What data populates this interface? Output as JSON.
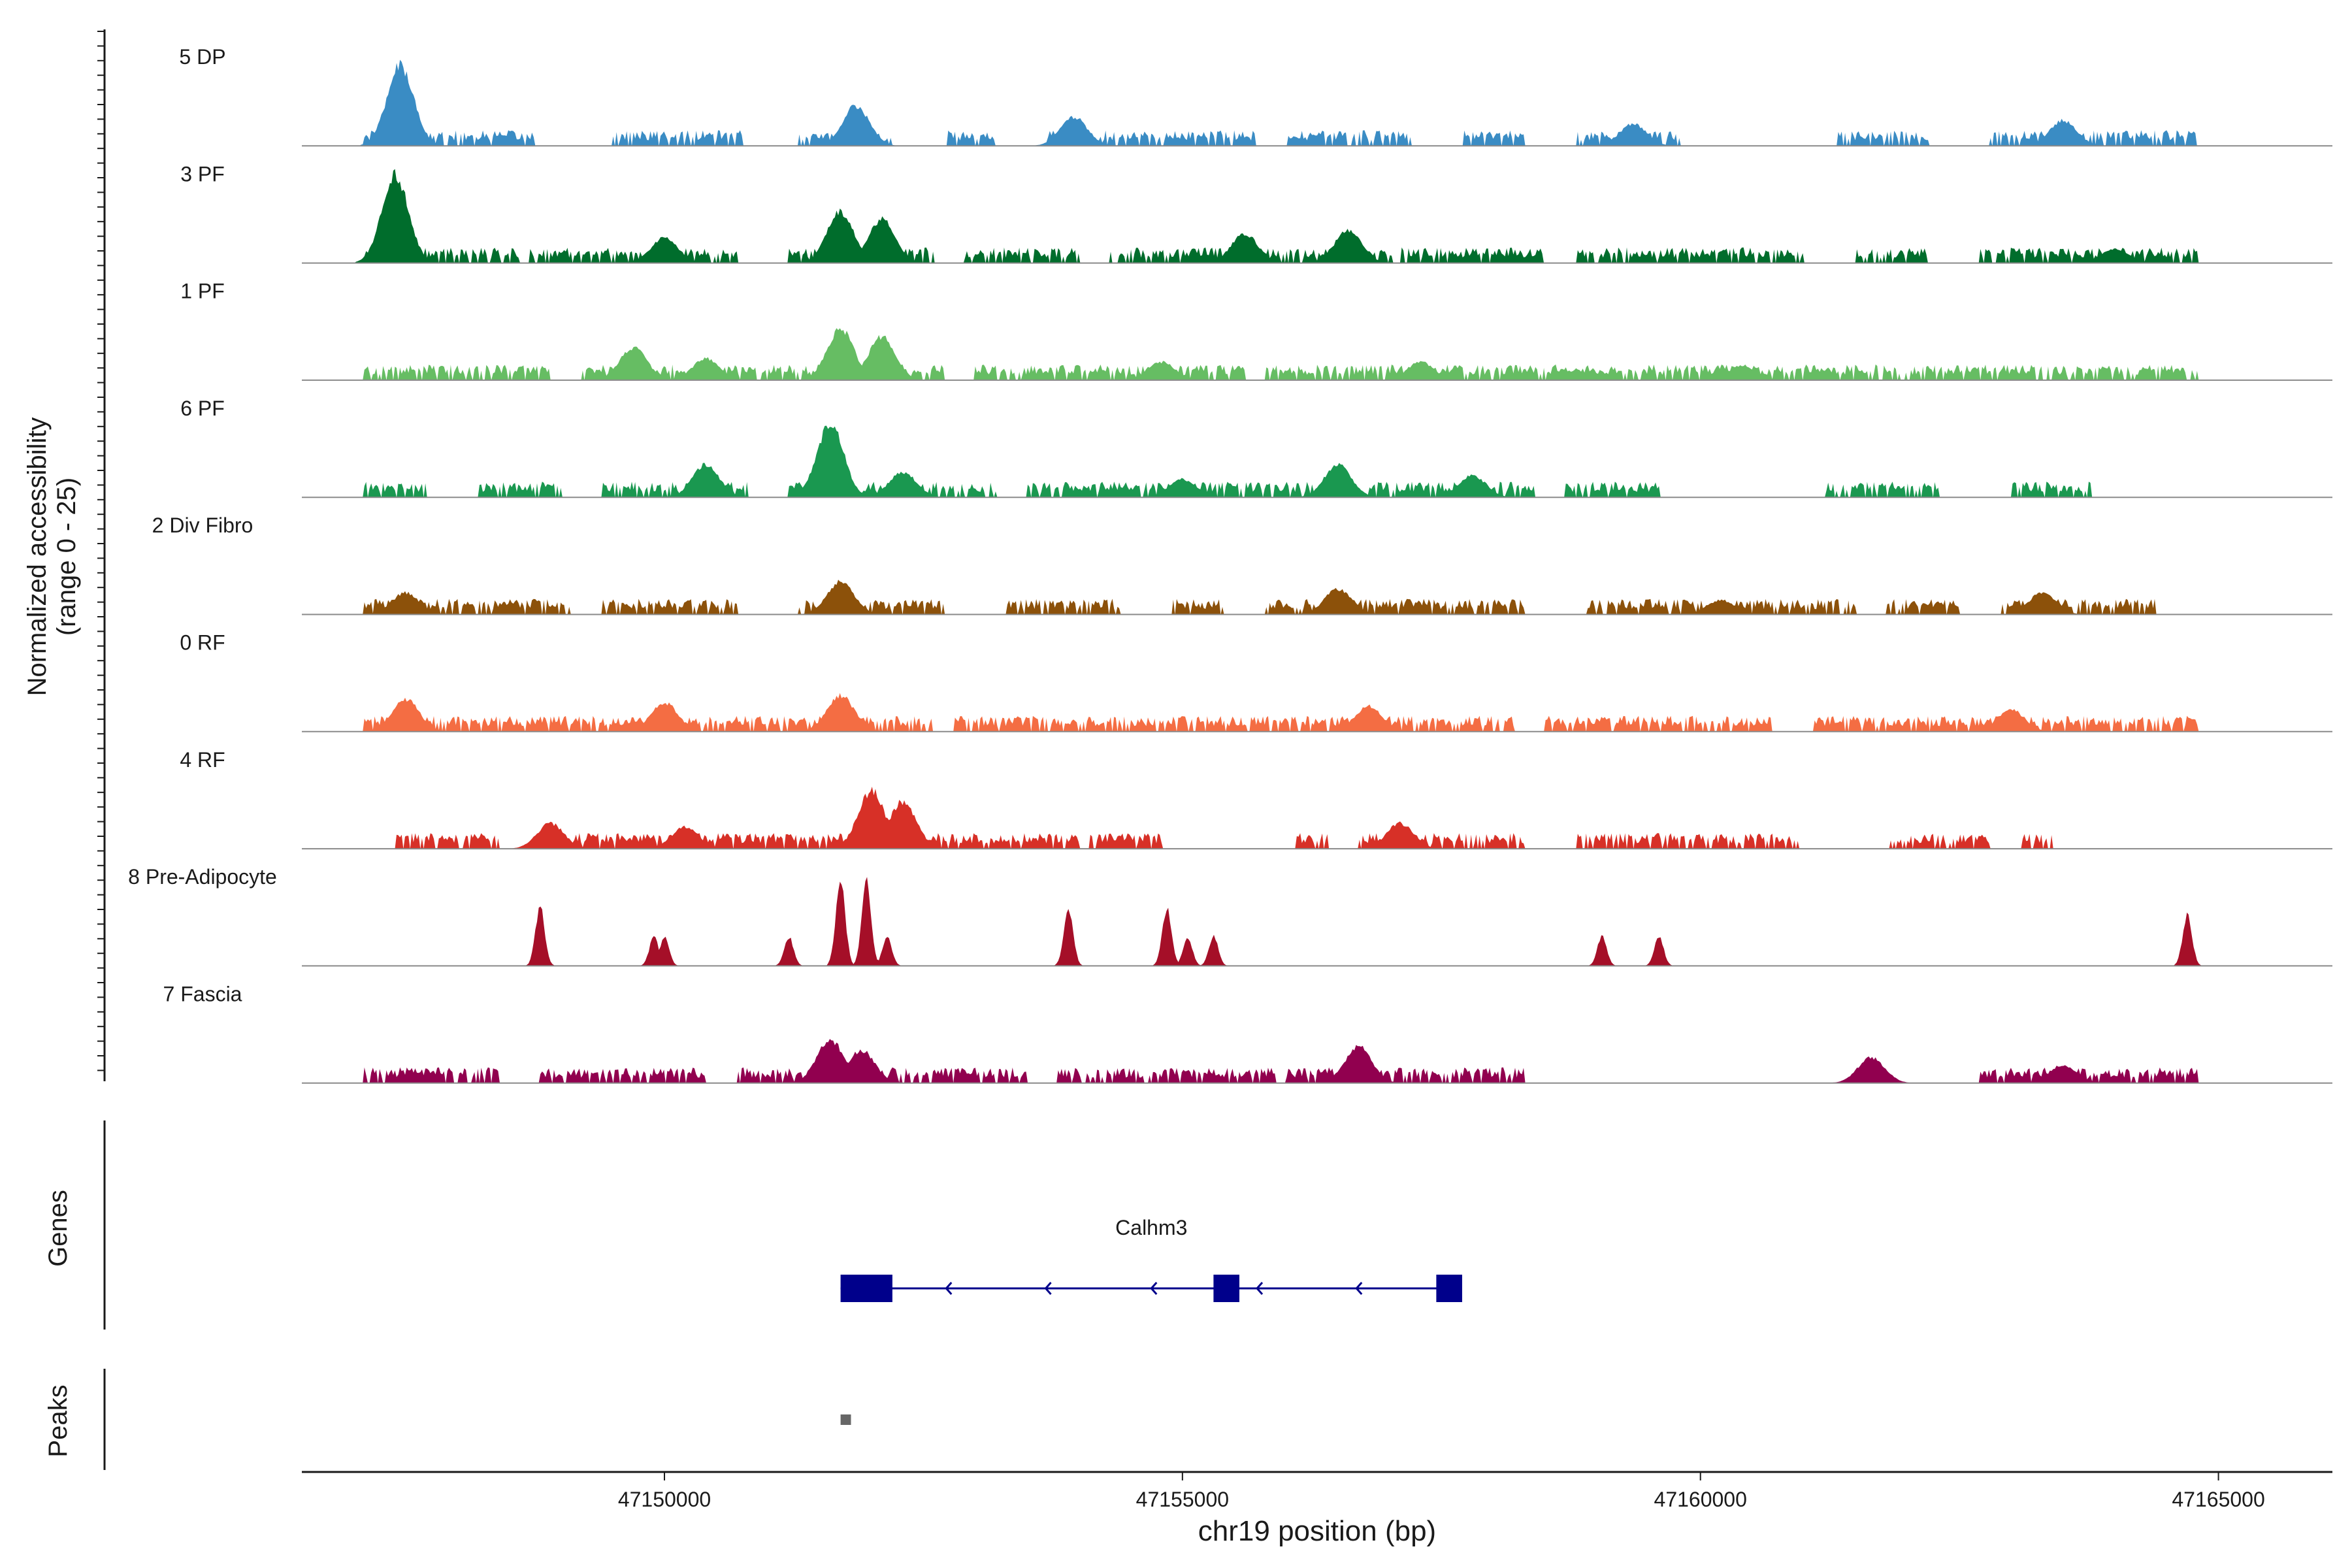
{
  "chart_data": {
    "type": "area",
    "title": "",
    "ylabel_line1": "Normalized accessibility",
    "ylabel_line2": "(range 0 - 25)",
    "xlabel": "chr19 position (bp)",
    "xlim": [
      47146500,
      47166100
    ],
    "ylim": [
      0,
      25
    ],
    "xticks": [
      47150000,
      47155000,
      47160000,
      47165000
    ],
    "xtick_labels": [
      "47150000",
      "47155000",
      "47160000",
      "47165000"
    ],
    "tracks": [
      {
        "name": "5 DP",
        "color": "#3a8cc4",
        "segments": [
          [
            47147100,
            47148750
          ],
          [
            47149500,
            47150750
          ],
          [
            47151300,
            47152200
          ],
          [
            47152700,
            47153200
          ],
          [
            47153700,
            47155700
          ],
          [
            47156000,
            47157200
          ],
          [
            47157700,
            47158300
          ],
          [
            47158800,
            47159800
          ],
          [
            47161300,
            47162200
          ],
          [
            47162800,
            47164800
          ]
        ],
        "peaks": [
          [
            47147450,
            22
          ],
          [
            47151850,
            11
          ],
          [
            47153950,
            8
          ],
          [
            47159350,
            6
          ],
          [
            47163500,
            7
          ]
        ]
      },
      {
        "name": "3 PF",
        "color": "#006d2c",
        "segments": [
          [
            47147100,
            47148600
          ],
          [
            47148700,
            47150700
          ],
          [
            47151200,
            47152600
          ],
          [
            47152900,
            47154000
          ],
          [
            47154300,
            47158500
          ],
          [
            47158800,
            47161000
          ],
          [
            47161500,
            47162200
          ],
          [
            47162700,
            47164800
          ]
        ],
        "peaks": [
          [
            47147400,
            24
          ],
          [
            47151700,
            14
          ],
          [
            47152100,
            12
          ],
          [
            47150000,
            7
          ],
          [
            47155600,
            8
          ],
          [
            47156600,
            9
          ],
          [
            47164000,
            4
          ]
        ]
      },
      {
        "name": "1 PF",
        "color": "#66bd63",
        "segments": [
          [
            47147100,
            47148900
          ],
          [
            47149200,
            47152700
          ],
          [
            47153000,
            47155600
          ],
          [
            47155800,
            47164800
          ]
        ],
        "peaks": [
          [
            47149700,
            9
          ],
          [
            47151700,
            14
          ],
          [
            47152100,
            12
          ],
          [
            47150400,
            6
          ],
          [
            47154800,
            5
          ],
          [
            47157300,
            5
          ],
          [
            47160400,
            4
          ]
        ]
      },
      {
        "name": "6 PF",
        "color": "#1a9850",
        "segments": [
          [
            47147100,
            47147700
          ],
          [
            47148200,
            47149000
          ],
          [
            47149400,
            47150800
          ],
          [
            47151200,
            47153200
          ],
          [
            47153500,
            47156400
          ],
          [
            47156800,
            47158400
          ],
          [
            47158700,
            47159600
          ],
          [
            47161200,
            47162300
          ],
          [
            47163000,
            47163800
          ]
        ],
        "peaks": [
          [
            47151600,
            20
          ],
          [
            47150400,
            9
          ],
          [
            47152300,
            7
          ],
          [
            47156500,
            9
          ],
          [
            47157800,
            6
          ],
          [
            47155000,
            5
          ]
        ]
      },
      {
        "name": "2 Div Fibro",
        "color": "#8c510a",
        "segments": [
          [
            47147100,
            47149100
          ],
          [
            47149400,
            47150700
          ],
          [
            47151300,
            47152700
          ],
          [
            47153300,
            47154400
          ],
          [
            47154900,
            47155400
          ],
          [
            47155800,
            47158300
          ],
          [
            47158900,
            47161500
          ],
          [
            47161800,
            47162500
          ],
          [
            47162900,
            47164400
          ]
        ],
        "peaks": [
          [
            47151700,
            9
          ],
          [
            47147500,
            6
          ],
          [
            47156500,
            7
          ],
          [
            47163300,
            6
          ],
          [
            47160200,
            4
          ]
        ]
      },
      {
        "name": "0 RF",
        "color": "#f46d43",
        "segments": [
          [
            47147100,
            47152600
          ],
          [
            47152800,
            47158200
          ],
          [
            47158500,
            47160700
          ],
          [
            47161100,
            47164800
          ]
        ],
        "peaks": [
          [
            47147500,
            9
          ],
          [
            47151700,
            10
          ],
          [
            47150000,
            8
          ],
          [
            47156800,
            7
          ],
          [
            47163000,
            6
          ]
        ]
      },
      {
        "name": "4 RF",
        "color": "#d73027",
        "segments": [
          [
            47147400,
            47148400
          ],
          [
            47148800,
            47154000
          ],
          [
            47154100,
            47154800
          ],
          [
            47156100,
            47156400
          ],
          [
            47156700,
            47158300
          ],
          [
            47158800,
            47161000
          ],
          [
            47161800,
            47162800
          ],
          [
            47163100,
            47163400
          ]
        ],
        "peaks": [
          [
            47152000,
            16
          ],
          [
            47152300,
            13
          ],
          [
            47148900,
            7
          ],
          [
            47150200,
            6
          ],
          [
            47157100,
            7
          ]
        ]
      },
      {
        "name": "8 Pre-Adipocyte",
        "color": "#a50f28",
        "segments": [],
        "peaks": [
          [
            47148800,
            16
          ],
          [
            47149900,
            8
          ],
          [
            47150000,
            8
          ],
          [
            47151200,
            8
          ],
          [
            47151700,
            24
          ],
          [
            47151950,
            24
          ],
          [
            47152150,
            8
          ],
          [
            47153900,
            16
          ],
          [
            47154850,
            16
          ],
          [
            47155050,
            8
          ],
          [
            47155300,
            8
          ],
          [
            47159050,
            8
          ],
          [
            47159600,
            8
          ],
          [
            47164700,
            14
          ]
        ]
      },
      {
        "name": "7 Fascia",
        "color": "#91004f",
        "segments": [
          [
            47147100,
            47148400
          ],
          [
            47148800,
            47150400
          ],
          [
            47150700,
            47153500
          ],
          [
            47153800,
            47155900
          ],
          [
            47156000,
            47158300
          ],
          [
            47161500,
            47161900
          ],
          [
            47162700,
            47164800
          ]
        ],
        "peaks": [
          [
            47151600,
            12
          ],
          [
            47151900,
            9
          ],
          [
            47156700,
            10
          ],
          [
            47161650,
            7
          ],
          [
            47163500,
            5
          ]
        ]
      }
    ],
    "genes_label": "Genes",
    "gene": {
      "name": "Calhm3",
      "strand": "-",
      "start": 47151700,
      "end": 47157700,
      "exons": [
        [
          47151700,
          47152200
        ],
        [
          47155300,
          47155550
        ],
        [
          47157450,
          47157700
        ]
      ]
    },
    "peaks_label": "Peaks",
    "peak_regions": [
      [
        47151700,
        47151800
      ]
    ]
  }
}
